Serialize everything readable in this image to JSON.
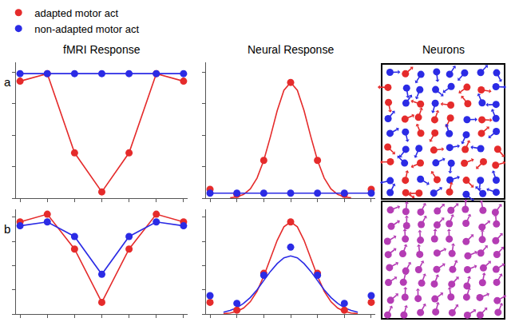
{
  "chart_data": [
    {
      "type": "line",
      "title": "fMRI Response",
      "annotations": [
        "a"
      ],
      "tick_labels": false,
      "x": [
        0,
        1,
        2,
        3,
        4,
        5,
        6
      ],
      "xlim": [
        -0.15,
        6.15
      ],
      "xticks": [
        0,
        1,
        2,
        3,
        4,
        5,
        6
      ],
      "ylim": [
        0,
        1.08
      ],
      "yticks": [
        0,
        0.25,
        0.5,
        0.75,
        1
      ],
      "series": [
        {
          "name": "adapted motor act",
          "color": "#e52b2b",
          "type": "line",
          "marker": "circle",
          "values": [
            0.93,
            0.99,
            0.36,
            0.05,
            0.36,
            0.99,
            0.93
          ]
        },
        {
          "name": "non-adapted motor act",
          "color": "#2b2be5",
          "type": "line",
          "marker": "circle",
          "values": [
            0.99,
            0.99,
            0.99,
            0.99,
            0.99,
            0.99,
            0.99
          ]
        }
      ]
    },
    {
      "type": "scatter",
      "title": "Neural Response",
      "legend": "top left",
      "tick_labels": false,
      "x": [
        0,
        1,
        2,
        3,
        4,
        5,
        6
      ],
      "xlim": [
        -0.15,
        6.15
      ],
      "xticks": [
        0,
        1,
        2,
        3,
        4,
        5,
        6
      ],
      "ylim": [
        0,
        1.08
      ],
      "yticks": [
        0,
        0.25,
        0.5,
        0.75,
        1
      ],
      "series": [
        {
          "name": "adapted motor act",
          "color": "#e52b2b",
          "type": "scatter",
          "marker": "circle",
          "values": [
            0.07,
            0.03,
            0.3,
            0.92,
            0.3,
            0.03,
            0.07
          ]
        },
        {
          "name": "non-adapted motor act",
          "color": "#2b2be5",
          "type": "scatter",
          "marker": "circle",
          "values": [
            0.04,
            0.04,
            0.04,
            0.04,
            0.04,
            0.04,
            0.04
          ]
        },
        {
          "name": "adapted motor act",
          "color": "#e52b2b",
          "type": "line",
          "x": [
            0.75,
            1,
            1.25,
            1.5,
            1.75,
            2,
            2.25,
            2.5,
            2.75,
            3,
            3.25,
            3.5,
            3.75,
            4,
            4.25,
            4.5,
            4.75,
            5,
            5.25
          ],
          "values": [
            0.003,
            0.01,
            0.03,
            0.074,
            0.16,
            0.3,
            0.49,
            0.695,
            0.858,
            0.92,
            0.858,
            0.695,
            0.49,
            0.3,
            0.16,
            0.074,
            0.03,
            0.01,
            0.003
          ]
        },
        {
          "name": "non-adapted motor act",
          "color": "#2b2be5",
          "type": "line",
          "x": [
            0,
            6
          ],
          "values": [
            0.04,
            0.04
          ]
        }
      ]
    },
    {
      "type": "line",
      "annotations": [
        "b"
      ],
      "tick_labels": false,
      "x": [
        0,
        1,
        2,
        3,
        4,
        5,
        6
      ],
      "xlim": [
        -0.15,
        6.15
      ],
      "xticks": [
        0,
        1,
        2,
        3,
        4,
        5,
        6
      ],
      "ylim": [
        0,
        1.08
      ],
      "yticks": [
        0,
        0.25,
        0.5,
        0.75,
        1
      ],
      "series": [
        {
          "name": "adapted motor act",
          "color": "#e52b2b",
          "type": "line",
          "marker": "circle",
          "values": [
            0.95,
            1.03,
            0.67,
            0.12,
            0.67,
            1.03,
            0.95
          ]
        },
        {
          "name": "non-adapted motor act",
          "color": "#2b2be5",
          "type": "line",
          "marker": "circle",
          "values": [
            0.91,
            0.95,
            0.8,
            0.41,
            0.8,
            0.95,
            0.91
          ]
        }
      ]
    },
    {
      "type": "scatter",
      "tick_labels": false,
      "x": [
        0,
        1,
        2,
        3,
        4,
        5,
        6
      ],
      "xlim": [
        -0.15,
        6.15
      ],
      "xticks": [
        0,
        1,
        2,
        3,
        4,
        5,
        6
      ],
      "ylim": [
        0,
        1.08
      ],
      "yticks": [
        0,
        0.25,
        0.5,
        0.75,
        1
      ],
      "series": [
        {
          "name": "adapted motor act",
          "color": "#e52b2b",
          "type": "scatter",
          "marker": "circle",
          "values": [
            0.12,
            0.04,
            0.42,
            0.95,
            0.42,
            0.04,
            0.12
          ]
        },
        {
          "name": "non-adapted motor act",
          "color": "#2b2be5",
          "type": "scatter",
          "marker": "circle",
          "values": [
            0.19,
            0.11,
            0.4,
            0.69,
            0.4,
            0.11,
            0.19
          ]
        },
        {
          "name": "adapted motor act",
          "color": "#e52b2b",
          "type": "line",
          "x": [
            0.5,
            0.75,
            1,
            1.25,
            1.5,
            1.75,
            2,
            2.25,
            2.5,
            2.75,
            3,
            3.25,
            3.5,
            3.75,
            4,
            4.25,
            4.5,
            4.75,
            5,
            5.25,
            5.5
          ],
          "values": [
            0.004,
            0.01,
            0.027,
            0.062,
            0.127,
            0.235,
            0.39,
            0.575,
            0.76,
            0.9,
            0.95,
            0.9,
            0.76,
            0.575,
            0.39,
            0.235,
            0.127,
            0.062,
            0.027,
            0.01,
            0.004
          ]
        },
        {
          "name": "non-adapted motor act",
          "color": "#2b2be5",
          "type": "line",
          "x": [
            0.5,
            0.75,
            1,
            1.25,
            1.5,
            1.75,
            2,
            2.25,
            2.5,
            2.75,
            3,
            3.25,
            3.5,
            3.75,
            4,
            4.25,
            4.5,
            4.75,
            5,
            5.25,
            5.5
          ],
          "values": [
            0.019,
            0.037,
            0.065,
            0.11,
            0.17,
            0.25,
            0.345,
            0.44,
            0.52,
            0.58,
            0.6,
            0.58,
            0.52,
            0.44,
            0.345,
            0.25,
            0.17,
            0.11,
            0.065,
            0.037,
            0.019
          ]
        }
      ]
    }
  ],
  "neurons": {
    "title": "Neurons",
    "panels": [
      {
        "colors": [
          "#e52b2b",
          "#2b2be5"
        ]
      },
      {
        "colors": [
          "#b43cb4"
        ]
      }
    ]
  }
}
